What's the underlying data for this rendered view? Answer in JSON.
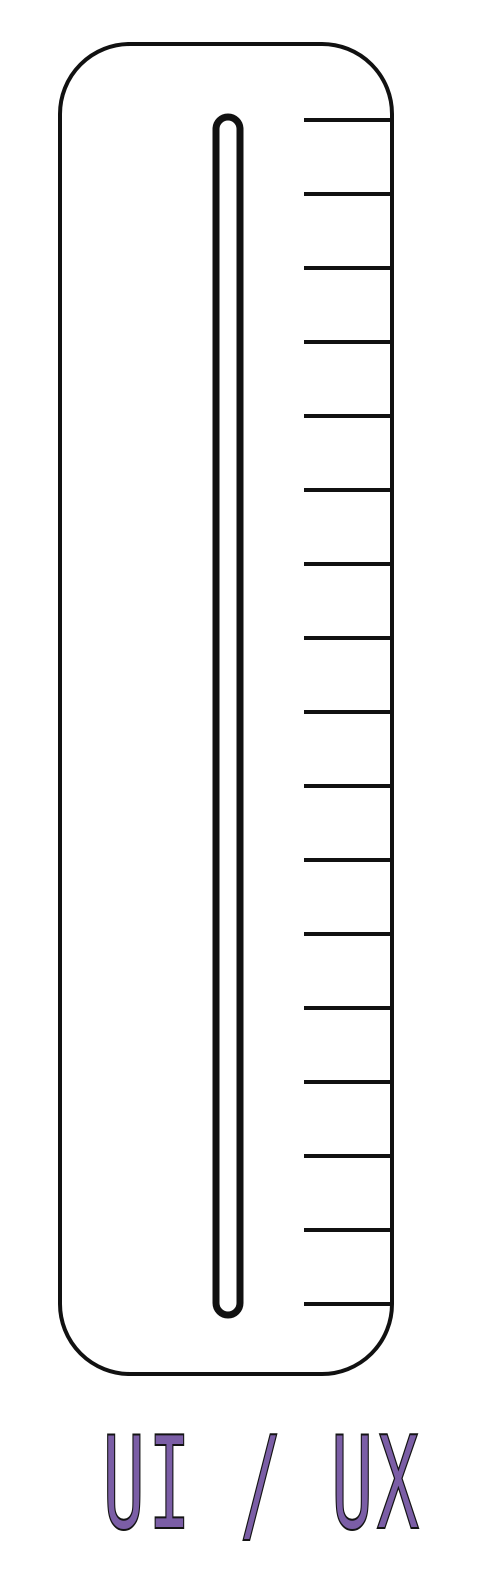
{
  "gauge": {
    "tick_count": 17,
    "fill_level": 0,
    "colors": {
      "outline": "#111111",
      "background": "#ffffff",
      "caption": "#7b5ea6"
    }
  },
  "caption": {
    "text": "UI / UX"
  }
}
